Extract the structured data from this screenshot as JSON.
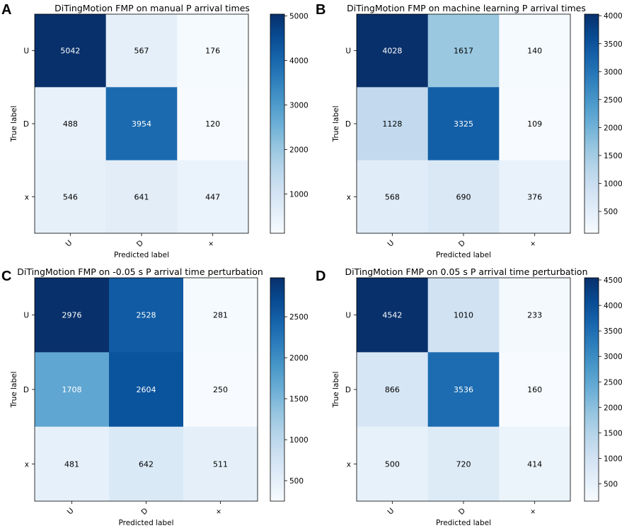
{
  "chart_data": [
    {
      "type": "heatmap",
      "panel": "A",
      "title": "DiTingMotion FMP on manual P arrival times",
      "xlabel": "Predicted label",
      "ylabel": "True label",
      "x_ticks": [
        "U",
        "D",
        "+"
      ],
      "y_ticks": [
        "U",
        "D",
        "x"
      ],
      "matrix": [
        [
          5042,
          567,
          176
        ],
        [
          488,
          3954,
          120
        ],
        [
          546,
          641,
          447
        ]
      ],
      "colorbar_ticks": [
        1000,
        2000,
        3000,
        4000,
        5000
      ],
      "colorbar_labels": [
        "1000",
        "2000",
        "3000",
        "4000",
        "5000"
      ],
      "vmin": 120,
      "vmax": 5042
    },
    {
      "type": "heatmap",
      "panel": "B",
      "title": "DiTingMotion FMP on machine learning P arrival times",
      "xlabel": "Predicted label",
      "ylabel": "True label",
      "x_ticks": [
        "U",
        "D",
        "+"
      ],
      "y_ticks": [
        "U",
        "D",
        "x"
      ],
      "matrix": [
        [
          4028,
          1617,
          140
        ],
        [
          1128,
          3325,
          109
        ],
        [
          568,
          690,
          376
        ]
      ],
      "colorbar_ticks": [
        500,
        1000,
        1500,
        2000,
        2500,
        3000,
        3500,
        4000
      ],
      "colorbar_labels": [
        "500",
        "1000",
        "1500",
        "2000",
        "2500",
        "3000",
        "3500",
        "4000"
      ],
      "vmin": 109,
      "vmax": 4028
    },
    {
      "type": "heatmap",
      "panel": "C",
      "title": "DiTingMotion FMP on  -0.05 s P arrival time perturbation",
      "xlabel": "Predicted label",
      "ylabel": "True label",
      "x_ticks": [
        "U",
        "D",
        "+"
      ],
      "y_ticks": [
        "U",
        "D",
        "x"
      ],
      "matrix": [
        [
          2976,
          2528,
          281
        ],
        [
          1708,
          2604,
          250
        ],
        [
          481,
          642,
          511
        ]
      ],
      "colorbar_ticks": [
        500,
        1000,
        1500,
        2000,
        2500
      ],
      "colorbar_labels": [
        "500",
        "1000",
        "1500",
        "2000",
        "2500"
      ],
      "vmin": 250,
      "vmax": 2976
    },
    {
      "type": "heatmap",
      "panel": "D",
      "title": "DiTingMotion FMP on  0.05 s P arrival time perturbation",
      "xlabel": "Predicted label",
      "ylabel": "True label",
      "x_ticks": [
        "U",
        "D",
        "+"
      ],
      "y_ticks": [
        "U",
        "D",
        "x"
      ],
      "matrix": [
        [
          4542,
          1010,
          233
        ],
        [
          866,
          3536,
          160
        ],
        [
          500,
          720,
          414
        ]
      ],
      "colorbar_ticks": [
        500,
        1000,
        1500,
        2000,
        2500,
        3000,
        3500,
        4000,
        4500
      ],
      "colorbar_labels": [
        "500",
        "1000",
        "1500",
        "2000",
        "2500",
        "3000",
        "3500",
        "4000",
        "4500"
      ],
      "vmin": 160,
      "vmax": 4542
    }
  ]
}
